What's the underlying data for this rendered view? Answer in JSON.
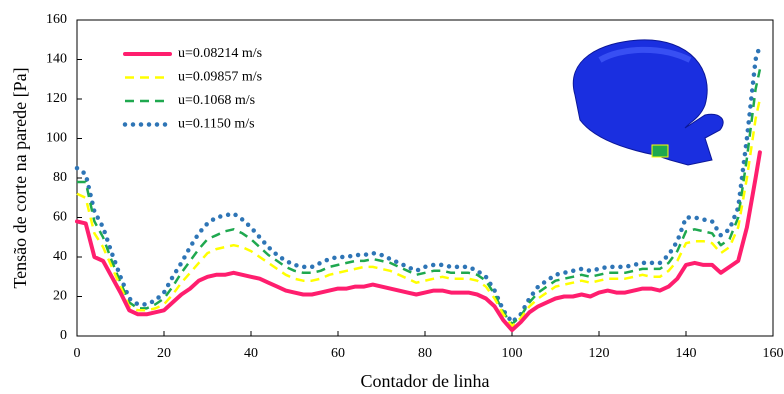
{
  "chart_data": {
    "type": "line",
    "xlabel": "Contador de linha",
    "ylabel": "Tensão de corte na parede [Pa]",
    "x": [
      0,
      2,
      4,
      6,
      8,
      10,
      12,
      14,
      16,
      18,
      20,
      22,
      24,
      26,
      28,
      30,
      32,
      34,
      36,
      38,
      40,
      42,
      44,
      46,
      48,
      50,
      52,
      54,
      56,
      58,
      60,
      62,
      64,
      66,
      68,
      70,
      72,
      74,
      76,
      78,
      80,
      82,
      84,
      86,
      88,
      90,
      92,
      94,
      96,
      98,
      100,
      102,
      104,
      106,
      108,
      110,
      112,
      114,
      116,
      118,
      120,
      122,
      124,
      126,
      128,
      130,
      132,
      134,
      136,
      138,
      140,
      142,
      144,
      146,
      148,
      150,
      152,
      154,
      156,
      157
    ],
    "series": [
      {
        "name": "u=0.08214 m/s",
        "color": "#ff1e6e",
        "linestyle": "solid",
        "values": [
          58,
          57,
          40,
          38,
          30,
          22,
          13,
          11,
          11,
          12,
          13,
          17,
          21,
          24,
          28,
          30,
          31,
          31,
          32,
          31,
          30,
          29,
          27,
          25,
          23,
          22,
          21,
          21,
          22,
          23,
          24,
          24,
          25,
          25,
          26,
          25,
          24,
          23,
          22,
          21,
          22,
          23,
          23,
          22,
          22,
          22,
          21,
          19,
          15,
          8,
          3,
          7,
          12,
          15,
          17,
          19,
          20,
          20,
          21,
          20,
          22,
          23,
          22,
          22,
          23,
          24,
          24,
          23,
          25,
          29,
          36,
          37,
          36,
          36,
          32,
          35,
          38,
          55,
          80,
          93
        ]
      },
      {
        "name": "u=0.09857 m/s",
        "color": "#ffff00",
        "linestyle": "dashed",
        "values": [
          72,
          70,
          52,
          45,
          35,
          25,
          15,
          13,
          13,
          14,
          16,
          21,
          27,
          32,
          37,
          42,
          44,
          45,
          46,
          45,
          43,
          40,
          37,
          34,
          31,
          29,
          28,
          28,
          29,
          31,
          32,
          33,
          34,
          35,
          35,
          34,
          33,
          31,
          29,
          27,
          28,
          29,
          30,
          29,
          29,
          29,
          28,
          25,
          19,
          11,
          5,
          9,
          15,
          19,
          22,
          25,
          26,
          27,
          28,
          27,
          28,
          29,
          29,
          29,
          30,
          31,
          30,
          30,
          33,
          38,
          47,
          48,
          48,
          47,
          42,
          45,
          55,
          80,
          110,
          120
        ]
      },
      {
        "name": "u=0.1068 m/s",
        "color": "#1fa84f",
        "linestyle": "dashed",
        "values": [
          78,
          78,
          58,
          50,
          38,
          27,
          17,
          14,
          14,
          16,
          19,
          25,
          32,
          38,
          44,
          49,
          51,
          53,
          54,
          52,
          49,
          45,
          41,
          38,
          35,
          33,
          32,
          32,
          33,
          35,
          36,
          37,
          38,
          38,
          39,
          38,
          37,
          35,
          33,
          31,
          32,
          33,
          33,
          32,
          32,
          32,
          31,
          28,
          21,
          12,
          6,
          10,
          17,
          22,
          25,
          28,
          29,
          30,
          31,
          30,
          31,
          32,
          32,
          32,
          33,
          34,
          34,
          34,
          37,
          43,
          53,
          54,
          53,
          52,
          46,
          49,
          60,
          90,
          125,
          135
        ]
      },
      {
        "name": "u=0.1150 m/s",
        "color": "#2e75b6",
        "linestyle": "dotted",
        "values": [
          85,
          82,
          63,
          55,
          42,
          30,
          19,
          16,
          16,
          18,
          22,
          30,
          37,
          45,
          52,
          57,
          60,
          61,
          62,
          59,
          55,
          50,
          45,
          41,
          38,
          36,
          35,
          35,
          37,
          39,
          40,
          40,
          41,
          41,
          42,
          41,
          39,
          37,
          35,
          33,
          35,
          36,
          36,
          35,
          35,
          35,
          33,
          30,
          23,
          13,
          7,
          11,
          19,
          25,
          28,
          31,
          32,
          33,
          34,
          33,
          34,
          35,
          35,
          35,
          36,
          37,
          37,
          37,
          41,
          48,
          60,
          60,
          59,
          58,
          51,
          54,
          65,
          100,
          140,
          147
        ]
      }
    ],
    "xlim": [
      0,
      160
    ],
    "xticks": [
      0,
      20,
      40,
      60,
      80,
      100,
      120,
      140,
      160
    ],
    "ylim": [
      0,
      160
    ],
    "yticks": [
      0,
      20,
      40,
      60,
      80,
      100,
      120,
      140,
      160
    ],
    "grid": false,
    "legend": "upper left"
  }
}
